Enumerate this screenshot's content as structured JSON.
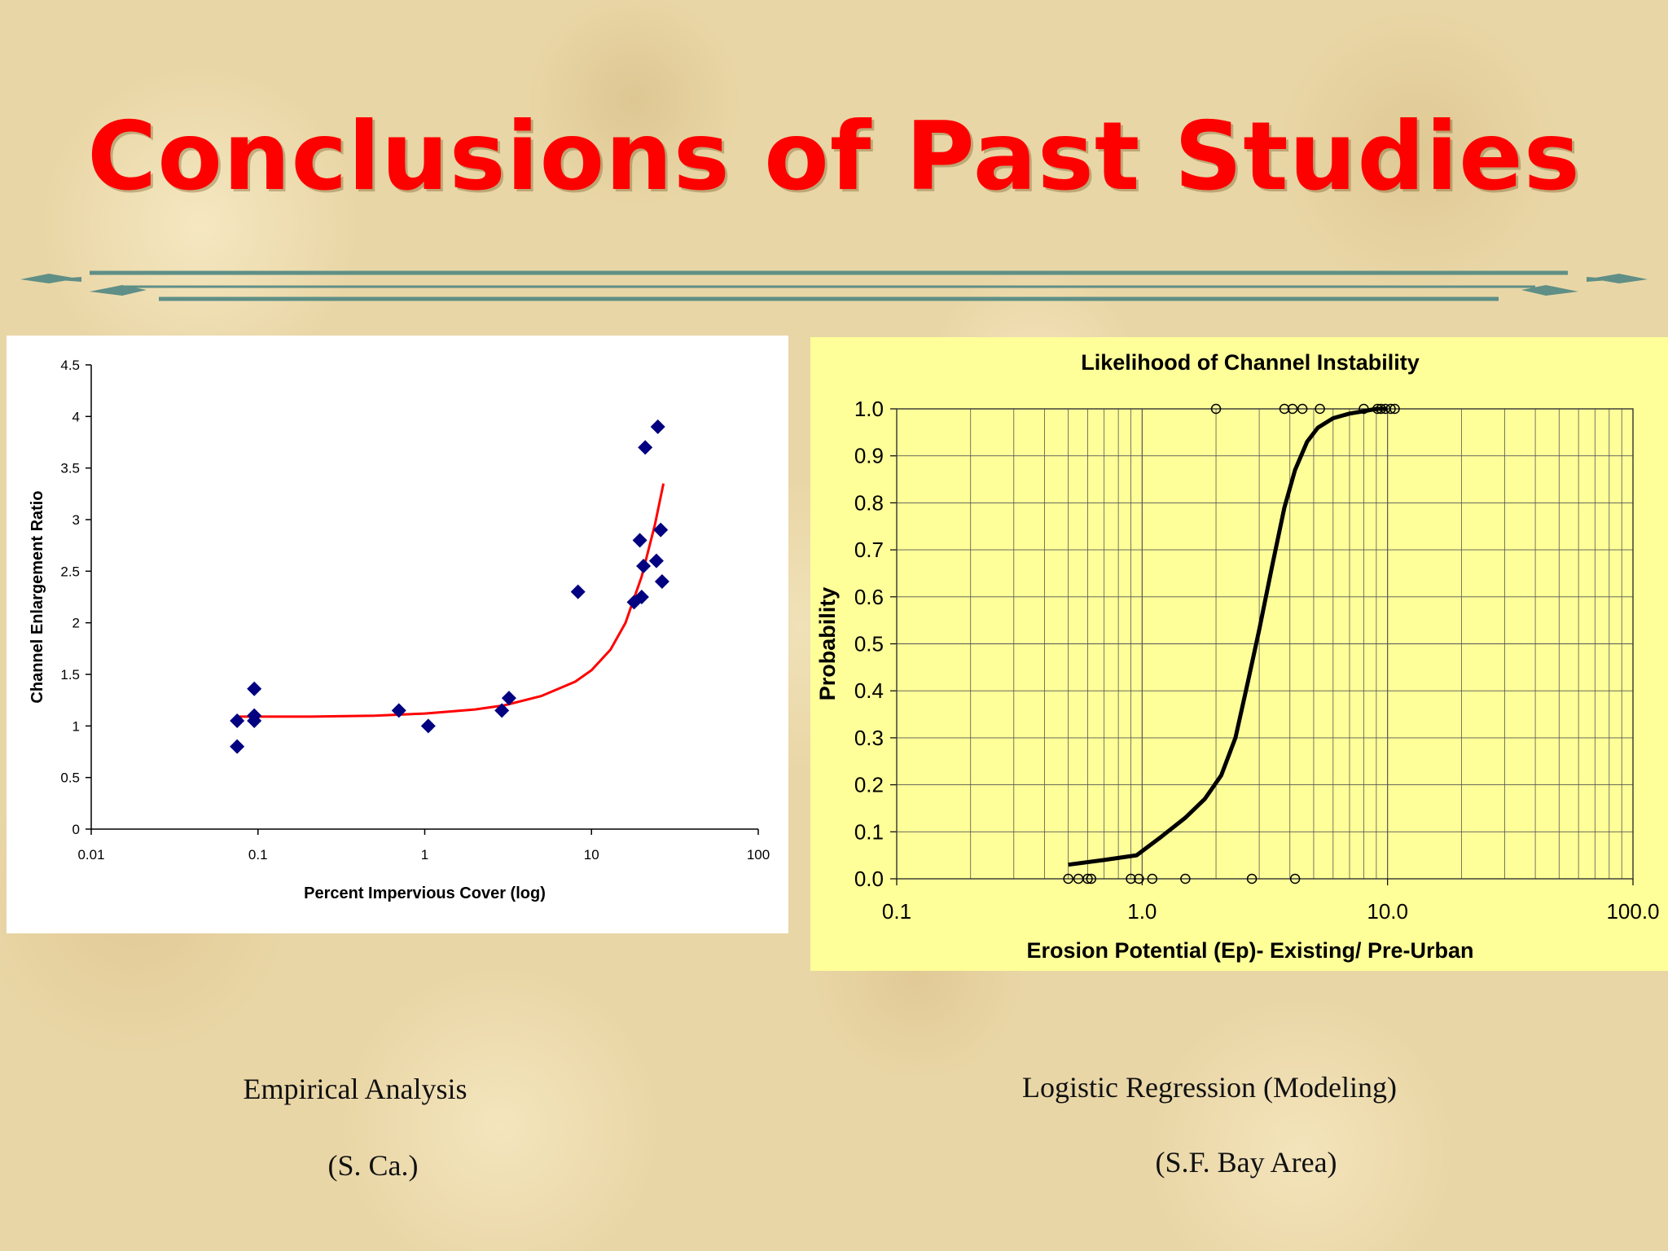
{
  "slide": {
    "title": "Conclusions of Past Studies"
  },
  "captions": {
    "left_line1": "Empirical Analysis",
    "left_line2": "(S. Ca.)",
    "right_line1": "Logistic Regression (Modeling)",
    "right_line2": "(S.F. Bay Area)"
  },
  "colors": {
    "title": "#ff0000",
    "divider": "#5f8f86",
    "left_points": "#000080",
    "left_fit": "#ff0000",
    "right_panel": "#ffff99"
  },
  "chart_data": [
    {
      "type": "scatter",
      "title": "",
      "xlabel": "Percent Impervious Cover (log)",
      "ylabel": "Channel Enlargement Ratio",
      "xscale": "log",
      "xlim": [
        0.01,
        100
      ],
      "ylim": [
        0,
        4.5
      ],
      "x_ticks": [
        "0.01",
        "0.1",
        "1",
        "10",
        "100"
      ],
      "y_ticks": [
        "0",
        "0.5",
        "1",
        "1.5",
        "2",
        "2.5",
        "3",
        "3.5",
        "4",
        "4.5"
      ],
      "grid": false,
      "legend": "none",
      "series": [
        {
          "kind": "points",
          "marker": "diamond",
          "x": [
            0.075,
            0.075,
            0.095,
            0.095,
            0.095,
            0.7,
            1.05,
            2.9,
            3.2,
            8.3,
            18.0,
            19.5,
            20.0,
            20.5,
            21.0,
            24.5,
            25.0,
            26.0,
            26.5
          ],
          "y": [
            1.05,
            0.8,
            1.36,
            1.1,
            1.05,
            1.15,
            1.0,
            1.15,
            1.27,
            2.3,
            2.2,
            2.8,
            2.25,
            2.55,
            3.7,
            2.6,
            3.9,
            2.9,
            2.4
          ]
        },
        {
          "kind": "fit",
          "marker": "none",
          "x": [
            0.075,
            0.2,
            0.5,
            1,
            2,
            3,
            5,
            8,
            10,
            13,
            16,
            20,
            24,
            27
          ],
          "y": [
            1.09,
            1.09,
            1.1,
            1.12,
            1.16,
            1.2,
            1.29,
            1.43,
            1.54,
            1.74,
            2.0,
            2.45,
            2.95,
            3.35
          ]
        }
      ]
    },
    {
      "type": "line",
      "title": "Likelihood of Channel Instability",
      "xlabel": "Erosion Potential (Ep)- Existing/ Pre-Urban",
      "ylabel": "Probability",
      "xscale": "log",
      "xlim": [
        0.1,
        100
      ],
      "ylim": [
        0,
        1
      ],
      "x_ticks": [
        "0.1",
        "1.0",
        "10.0",
        "100.0"
      ],
      "y_ticks": [
        "0.0",
        "0.1",
        "0.2",
        "0.3",
        "0.4",
        "0.5",
        "0.6",
        "0.7",
        "0.8",
        "0.9",
        "1.0"
      ],
      "grid": true,
      "legend": "none",
      "series": [
        {
          "kind": "curve",
          "marker": "none",
          "x": [
            0.5,
            0.7,
            0.95,
            1.2,
            1.5,
            1.8,
            2.1,
            2.4,
            2.7,
            3.0,
            3.4,
            3.8,
            4.2,
            4.7,
            5.2,
            6.0,
            7.0,
            8.0,
            9.0,
            10.0
          ],
          "y": [
            0.03,
            0.04,
            0.05,
            0.09,
            0.13,
            0.17,
            0.22,
            0.3,
            0.42,
            0.53,
            0.67,
            0.79,
            0.87,
            0.93,
            0.96,
            0.98,
            0.99,
            0.995,
            1.0,
            1.0
          ]
        },
        {
          "kind": "observations",
          "marker": "open-circle",
          "x": [
            0.5,
            0.55,
            0.6,
            0.62,
            0.9,
            0.97,
            1.1,
            1.5,
            2.8,
            4.2,
            2.0,
            3.8,
            4.1,
            4.5,
            5.3,
            8.0,
            9.1,
            9.4,
            9.8,
            10.3,
            10.7
          ],
          "y": [
            0,
            0,
            0,
            0,
            0,
            0,
            0,
            0,
            0,
            0,
            1,
            1,
            1,
            1,
            1,
            1,
            1,
            1,
            1,
            1,
            1
          ]
        }
      ]
    }
  ]
}
